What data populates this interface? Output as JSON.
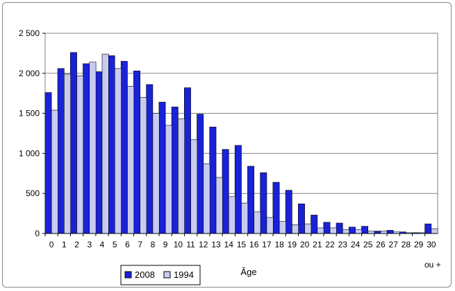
{
  "chart_data": {
    "type": "bar",
    "title": "",
    "xlabel": "Âge",
    "ylabel": "",
    "categories": [
      "0",
      "1",
      "2",
      "3",
      "4",
      "5",
      "6",
      "7",
      "8",
      "9",
      "10",
      "11",
      "12",
      "13",
      "14",
      "15",
      "16",
      "17",
      "18",
      "19",
      "20",
      "21",
      "22",
      "23",
      "24",
      "25",
      "26",
      "27",
      "28",
      "29",
      "30"
    ],
    "last_category_suffix": "ou +",
    "ylim": [
      0,
      2500
    ],
    "yticks": [
      {
        "value": 0,
        "label": "0"
      },
      {
        "value": 500,
        "label": "500"
      },
      {
        "value": 1000,
        "label": "1 000"
      },
      {
        "value": 1500,
        "label": "1 500"
      },
      {
        "value": 2000,
        "label": "2 000"
      },
      {
        "value": 2500,
        "label": "2 500"
      }
    ],
    "grid": true,
    "legend_position": "bottom-left",
    "series": [
      {
        "name": "2008",
        "color": "#1a22d8",
        "values": [
          1760,
          2060,
          2260,
          2120,
          2020,
          2220,
          2150,
          2030,
          1860,
          1640,
          1580,
          1820,
          1490,
          1330,
          1050,
          1100,
          840,
          760,
          640,
          540,
          370,
          230,
          140,
          130,
          80,
          90,
          30,
          40,
          20,
          10,
          120
        ]
      },
      {
        "name": "1994",
        "color": "#c8ccf0",
        "values": [
          1540,
          1990,
          1970,
          2140,
          2240,
          2060,
          1840,
          1700,
          1500,
          1350,
          1430,
          1170,
          870,
          700,
          460,
          380,
          270,
          200,
          150,
          110,
          120,
          70,
          70,
          50,
          50,
          30,
          30,
          20,
          10,
          10,
          60
        ]
      }
    ]
  }
}
